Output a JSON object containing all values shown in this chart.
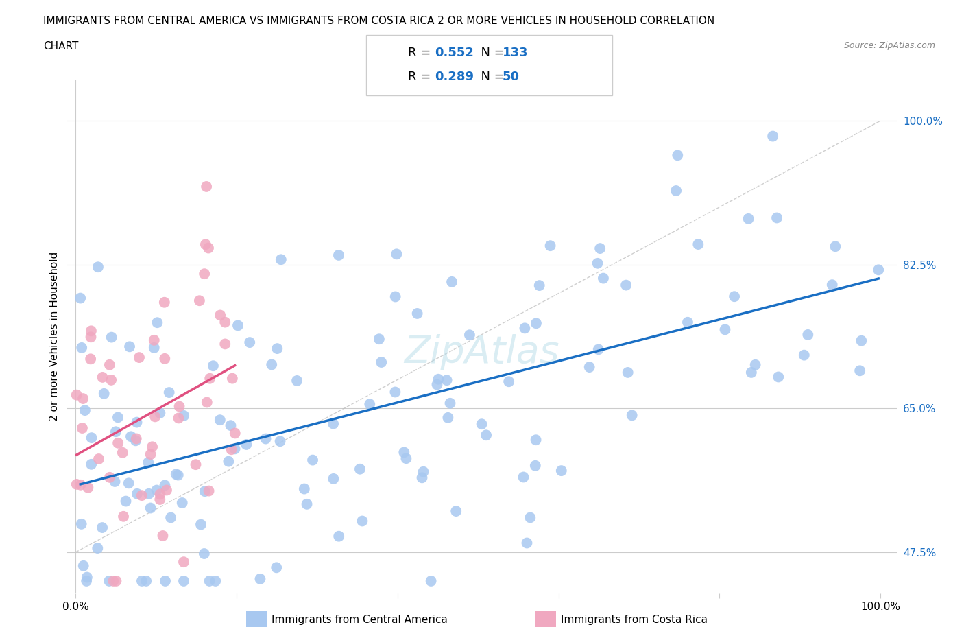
{
  "title_line1": "IMMIGRANTS FROM CENTRAL AMERICA VS IMMIGRANTS FROM COSTA RICA 2 OR MORE VEHICLES IN HOUSEHOLD CORRELATION",
  "title_line2": "CHART",
  "source": "Source: ZipAtlas.com",
  "ylabel": "2 or more Vehicles in Household",
  "blue_label": "Immigrants from Central America",
  "pink_label": "Immigrants from Costa Rica",
  "blue_R": 0.552,
  "blue_N": 133,
  "pink_R": 0.289,
  "pink_N": 50,
  "blue_color": "#a8c8f0",
  "pink_color": "#f0a8c0",
  "blue_line_color": "#1a6fc4",
  "pink_line_color": "#e05080",
  "right_ytick_labels": [
    "47.5%",
    "65.0%",
    "82.5%",
    "100.0%"
  ],
  "right_yticks": [
    47.5,
    65.0,
    82.5,
    100.0
  ],
  "xlim": [
    0,
    100
  ],
  "ylim": [
    42.5,
    105
  ],
  "watermark": "ZipAtlas"
}
